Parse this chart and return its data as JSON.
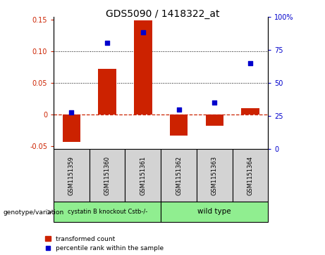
{
  "title": "GDS5090 / 1418322_at",
  "samples": [
    "GSM1151359",
    "GSM1151360",
    "GSM1151361",
    "GSM1151362",
    "GSM1151363",
    "GSM1151364"
  ],
  "bar_values": [
    -0.044,
    0.072,
    0.149,
    -0.034,
    -0.018,
    0.01
  ],
  "percentile_values": [
    28,
    80,
    88,
    30,
    35,
    65
  ],
  "bar_color": "#cc2200",
  "dot_color": "#0000cc",
  "ylim_left": [
    -0.055,
    0.155
  ],
  "ylim_right": [
    0,
    100
  ],
  "yticks_left": [
    -0.05,
    0.0,
    0.05,
    0.1,
    0.15
  ],
  "yticks_right": [
    0,
    25,
    50,
    75,
    100
  ],
  "ytick_labels_left": [
    "-0.05",
    "0",
    "0.05",
    "0.10",
    "0.15"
  ],
  "ytick_labels_right": [
    "0",
    "25",
    "50",
    "75",
    "100%"
  ],
  "hline_values": [
    0.05,
    0.1
  ],
  "zero_line_color": "#cc2200",
  "dotted_line_color": "#000000",
  "group1_label": "cystatin B knockout Cstb-/-",
  "group2_label": "wild type",
  "group1_indices": [
    0,
    1,
    2
  ],
  "group2_indices": [
    3,
    4,
    5
  ],
  "group1_color": "#90ee90",
  "group2_color": "#90ee90",
  "genotype_label": "genotype/variation",
  "legend_bar_label": "transformed count",
  "legend_dot_label": "percentile rank within the sample",
  "label_box_color": "#d3d3d3"
}
